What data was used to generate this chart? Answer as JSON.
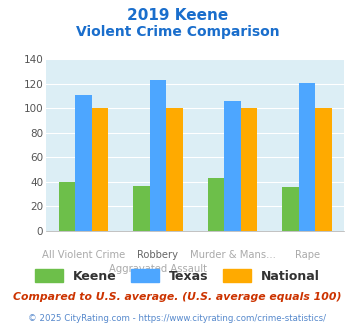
{
  "title_line1": "2019 Keene",
  "title_line2": "Violent Crime Comparison",
  "cat_labels_top": [
    "",
    "Robbery",
    "",
    ""
  ],
  "cat_labels_bot": [
    "All Violent Crime",
    "Aggravated Assault",
    "Murder & Mans...",
    "Rape"
  ],
  "series": {
    "Keene": [
      40,
      37,
      43,
      36
    ],
    "Texas": [
      111,
      123,
      106,
      121
    ],
    "National": [
      100,
      100,
      100,
      100
    ]
  },
  "colors": {
    "Keene": "#6dbf4a",
    "Texas": "#4da6ff",
    "National": "#ffaa00"
  },
  "ylim": [
    0,
    140
  ],
  "yticks": [
    0,
    20,
    40,
    60,
    80,
    100,
    120,
    140
  ],
  "title_color": "#1a6ecc",
  "axis_bg_color": "#dceef5",
  "fig_bg_color": "#ffffff",
  "footnote1": "Compared to U.S. average. (U.S. average equals 100)",
  "footnote2": "© 2025 CityRating.com - https://www.cityrating.com/crime-statistics/",
  "footnote1_color": "#cc3300",
  "footnote2_color": "#5588cc"
}
